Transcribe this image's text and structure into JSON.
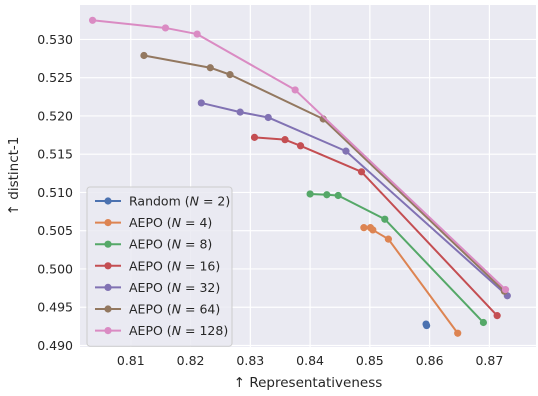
{
  "chart_data": {
    "type": "line",
    "title": "",
    "xlabel": "↑ Representativeness",
    "ylabel": "↑ distinct-1",
    "xlim": [
      0.8015,
      0.8778
    ],
    "ylim": [
      0.4898,
      0.5345
    ],
    "xticks": [
      "0.81",
      "0.82",
      "0.83",
      "0.84",
      "0.85",
      "0.86",
      "0.87"
    ],
    "xtick_values": [
      0.81,
      0.82,
      0.83,
      0.84,
      0.85,
      0.86,
      0.87
    ],
    "yticks": [
      "0.490",
      "0.495",
      "0.500",
      "0.505",
      "0.510",
      "0.515",
      "0.520",
      "0.525",
      "0.530"
    ],
    "ytick_values": [
      0.49,
      0.495,
      0.5,
      0.505,
      0.51,
      0.515,
      0.52,
      0.525,
      0.53
    ],
    "grid": true,
    "legend_position": "lower-left",
    "series": [
      {
        "name": "Random (N = 2)",
        "legend_prefix": "Random (",
        "legend_var": "N",
        "legend_suffix": " = 2)",
        "color": "#4c72b0",
        "x": [
          0.8594,
          0.8595
        ],
        "y": [
          0.4928,
          0.4926
        ]
      },
      {
        "name": "AEPO (N = 4)",
        "legend_prefix": "AEPO (",
        "legend_var": "N",
        "legend_suffix": " = 4)",
        "color": "#dd8452",
        "x": [
          0.849,
          0.8501,
          0.8505,
          0.8531,
          0.8647
        ],
        "y": [
          0.5054,
          0.5054,
          0.5051,
          0.5039,
          0.4916
        ]
      },
      {
        "name": "AEPO (N = 8)",
        "legend_prefix": "AEPO (",
        "legend_var": "N",
        "legend_suffix": " = 8)",
        "color": "#55a868",
        "x": [
          0.84,
          0.8428,
          0.8447,
          0.8525,
          0.869
        ],
        "y": [
          0.5098,
          0.5097,
          0.5096,
          0.5065,
          0.493
        ]
      },
      {
        "name": "AEPO (N = 16)",
        "legend_prefix": "AEPO (",
        "legend_var": "N",
        "legend_suffix": " = 16)",
        "color": "#c44e52",
        "x": [
          0.8307,
          0.8358,
          0.8384,
          0.8486,
          0.8713
        ],
        "y": [
          0.5172,
          0.5169,
          0.5161,
          0.5127,
          0.4939
        ]
      },
      {
        "name": "AEPO (N = 32)",
        "legend_prefix": "AEPO (",
        "legend_var": "N",
        "legend_suffix": " = 32)",
        "color": "#8172b3",
        "x": [
          0.8218,
          0.8283,
          0.833,
          0.846,
          0.873
        ],
        "y": [
          0.5217,
          0.5205,
          0.5198,
          0.5154,
          0.4965
        ]
      },
      {
        "name": "AEPO (N = 64)",
        "legend_prefix": "AEPO (",
        "legend_var": "N",
        "legend_suffix": " = 64)",
        "color": "#937860",
        "x": [
          0.8122,
          0.8233,
          0.8266,
          0.8422,
          0.8725
        ],
        "y": [
          0.5279,
          0.5263,
          0.5254,
          0.5196,
          0.4971
        ]
      },
      {
        "name": "AEPO (N = 128)",
        "legend_prefix": "AEPO (",
        "legend_var": "N",
        "legend_suffix": " = 128)",
        "color": "#da8bc3",
        "x": [
          0.8036,
          0.8158,
          0.8211,
          0.8375,
          0.8727
        ],
        "y": [
          0.5325,
          0.5315,
          0.5307,
          0.5234,
          0.4973
        ]
      }
    ]
  }
}
